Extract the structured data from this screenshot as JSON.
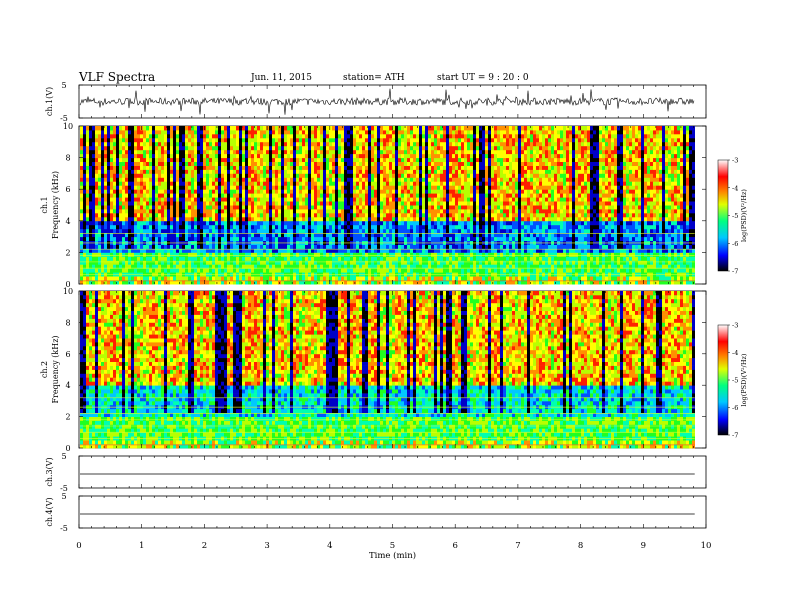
{
  "header": {
    "title": "VLF  Spectra",
    "date": "Jun. 11, 2015",
    "station": "station= ATH",
    "start": "start  UT  =   9  : 20 : 0"
  },
  "chart_data": [
    {
      "type": "line",
      "panel": "ch1-waveform",
      "ylabel": "ch.1(V)",
      "yticks": [
        "5",
        "-5"
      ],
      "ylim": [
        -5,
        5
      ],
      "x": [
        0,
        9.8
      ],
      "note": "noisy waveform with spikes"
    },
    {
      "type": "heatmap",
      "panel": "ch1-spectrogram",
      "ylabel": [
        "ch.1",
        "Frequency  (kHz)"
      ],
      "yticks": [
        "0",
        "2",
        "4",
        "6",
        "8",
        "10"
      ],
      "ylim": [
        0,
        10
      ],
      "colorbar": {
        "label": "log(PSD)(V²/Hz)",
        "ticks": [
          "-3",
          "-4",
          "-5",
          "-6",
          "-7"
        ],
        "range": [
          -7,
          -3
        ],
        "colors": [
          "#000000",
          "#0000ff",
          "#00c8ff",
          "#00ff80",
          "#e0ff00",
          "#ff8000",
          "#ff0000",
          "#ffffff"
        ]
      }
    },
    {
      "type": "heatmap",
      "panel": "ch2-spectrogram",
      "ylabel": [
        "ch.2",
        "Frequency  (kHz)"
      ],
      "yticks": [
        "0",
        "2",
        "4",
        "6",
        "8",
        "10"
      ],
      "ylim": [
        0,
        10
      ],
      "colorbar": {
        "label": "log(PSD)(V²/Hz)",
        "ticks": [
          "-3",
          "-4",
          "-5",
          "-6",
          "-7"
        ],
        "range": [
          -7,
          -3
        ]
      }
    },
    {
      "type": "line",
      "panel": "ch3-waveform",
      "ylabel": "ch.3(V)",
      "yticks": [
        "5",
        "-5"
      ],
      "ylim": [
        -5,
        5
      ]
    },
    {
      "type": "line",
      "panel": "ch4-waveform",
      "ylabel": "ch.4(V)",
      "yticks": [
        "5",
        "-5"
      ],
      "ylim": [
        -5,
        5
      ]
    }
  ],
  "xaxis": {
    "label": "Time  (min)",
    "ticks": [
      "0",
      "1",
      "2",
      "3",
      "4",
      "5",
      "6",
      "7",
      "8",
      "9",
      "10"
    ],
    "xlim": [
      0,
      10
    ]
  }
}
